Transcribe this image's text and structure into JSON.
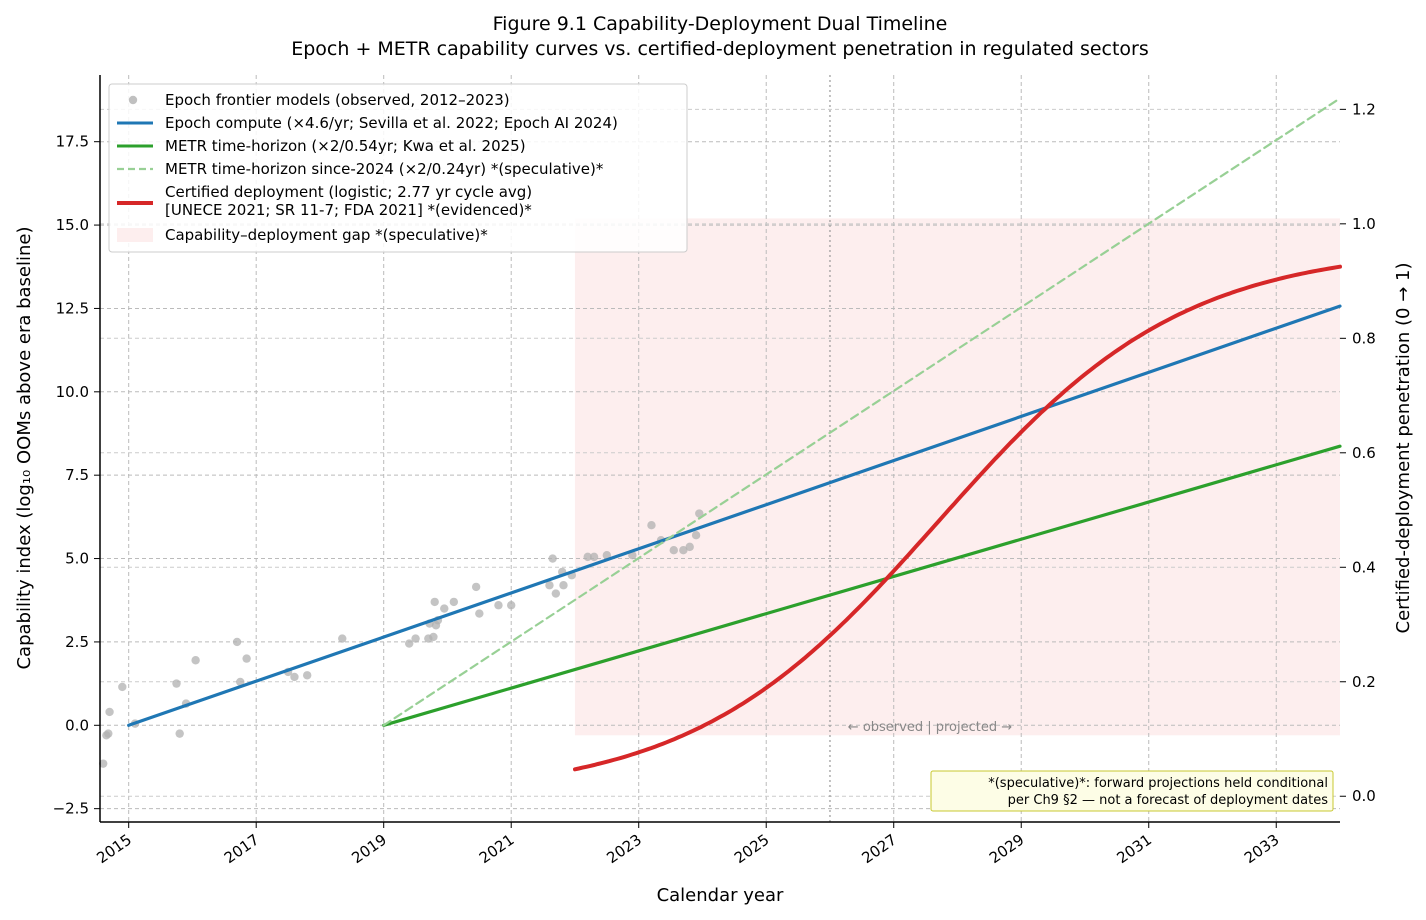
{
  "chart_data": {
    "type": "line",
    "title": "Figure 9.1  Capability-Deployment Dual Timeline",
    "subtitle": "Epoch + METR capability curves vs. certified-deployment penetration in regulated sectors",
    "xlabel": "Calendar year",
    "ylabel_left": "Capability index (log₁₀ OOMs above era baseline)",
    "ylabel_right": "Certified-deployment penetration (0 → 1)",
    "xlim": [
      2014.55,
      2034.0
    ],
    "ylim_left": [
      -2.9,
      19.5
    ],
    "ylim_right": [
      -0.045,
      1.26
    ],
    "x_ticks": [
      2015,
      2017,
      2019,
      2021,
      2023,
      2025,
      2027,
      2029,
      2031,
      2033
    ],
    "x_tick_labels": [
      "2015",
      "2017",
      "2019",
      "2021",
      "2023",
      "2025",
      "2027",
      "2029",
      "2031",
      "2033"
    ],
    "y_left_ticks": [
      -2.5,
      0.0,
      2.5,
      5.0,
      7.5,
      10.0,
      12.5,
      15.0,
      17.5
    ],
    "y_left_tick_labels": [
      "−2.5",
      "0.0",
      "2.5",
      "5.0",
      "7.5",
      "10.0",
      "12.5",
      "15.0",
      "17.5"
    ],
    "y_right_ticks": [
      0.0,
      0.2,
      0.4,
      0.6,
      0.8,
      1.0,
      1.2
    ],
    "y_right_tick_labels": [
      "0.0",
      "0.2",
      "0.4",
      "0.6",
      "0.8",
      "1.0",
      "1.2"
    ],
    "grid": true,
    "legend_position": "upper-left",
    "series": [
      {
        "name": "Epoch frontier models (observed, 2012–2023)",
        "kind": "scatter",
        "axis": "left",
        "color": "#b0b0b0",
        "points": [
          [
            2014.3,
            -1.3
          ],
          [
            2014.6,
            -1.15
          ],
          [
            2014.65,
            -0.3
          ],
          [
            2014.68,
            -0.25
          ],
          [
            2014.7,
            0.4
          ],
          [
            2014.9,
            1.15
          ],
          [
            2015.1,
            0.05
          ],
          [
            2015.75,
            1.25
          ],
          [
            2015.8,
            -0.25
          ],
          [
            2015.9,
            0.65
          ],
          [
            2016.05,
            1.95
          ],
          [
            2016.7,
            2.5
          ],
          [
            2016.75,
            1.3
          ],
          [
            2016.85,
            2.0
          ],
          [
            2017.5,
            1.6
          ],
          [
            2017.6,
            1.45
          ],
          [
            2017.8,
            1.5
          ],
          [
            2018.35,
            2.6
          ],
          [
            2019.4,
            2.45
          ],
          [
            2019.5,
            2.6
          ],
          [
            2019.7,
            2.6
          ],
          [
            2019.72,
            3.05
          ],
          [
            2019.78,
            2.65
          ],
          [
            2019.8,
            3.7
          ],
          [
            2019.82,
            3.0
          ],
          [
            2019.85,
            3.15
          ],
          [
            2019.95,
            3.5
          ],
          [
            2020.1,
            3.7
          ],
          [
            2020.45,
            4.15
          ],
          [
            2020.5,
            3.35
          ],
          [
            2020.8,
            3.6
          ],
          [
            2021.0,
            3.6
          ],
          [
            2021.6,
            4.2
          ],
          [
            2021.65,
            5.0
          ],
          [
            2021.7,
            3.95
          ],
          [
            2021.8,
            4.6
          ],
          [
            2021.82,
            4.2
          ],
          [
            2021.95,
            4.5
          ],
          [
            2022.2,
            5.05
          ],
          [
            2022.3,
            5.05
          ],
          [
            2022.5,
            5.1
          ],
          [
            2022.9,
            5.1
          ],
          [
            2023.2,
            6.0
          ],
          [
            2023.35,
            5.55
          ],
          [
            2023.55,
            5.25
          ],
          [
            2023.7,
            5.25
          ],
          [
            2023.8,
            5.35
          ],
          [
            2023.9,
            5.7
          ],
          [
            2023.95,
            6.35
          ]
        ]
      },
      {
        "name": "Epoch compute (×4.6/yr; Sevilla et al. 2022; Epoch AI 2024)",
        "kind": "line",
        "axis": "left",
        "color": "#1f77b4",
        "points": [
          [
            2015.0,
            0.0
          ],
          [
            2034.0,
            12.57
          ]
        ]
      },
      {
        "name": "METR time-horizon (×2/0.54yr; Kwa et al. 2025)",
        "kind": "line",
        "axis": "left",
        "color": "#2ca02c",
        "points": [
          [
            2019.0,
            0.0
          ],
          [
            2034.0,
            8.37
          ]
        ]
      },
      {
        "name": "METR time-horizon since-2024 (×2/0.24yr) *(speculative)*",
        "kind": "line",
        "axis": "left",
        "color": "#98d095",
        "dashed": true,
        "points": [
          [
            2019.0,
            0.0
          ],
          [
            2034.0,
            18.8
          ]
        ]
      },
      {
        "name": "Certified deployment (logistic; 2.77 yr cycle avg)\n[UNECE 2021; SR 11-7; FDA 2021] *(evidenced)*",
        "kind": "logistic",
        "axis": "right",
        "color": "#d62728",
        "x_start": 2022.0,
        "x_end": 2034.0,
        "L": 0.96,
        "k": 0.52,
        "x0": 2027.7
      }
    ],
    "gap_region": {
      "name": "Capability–deployment gap *(speculative)*",
      "color": "#fdeeee",
      "x_range": [
        2022.0,
        2034.0
      ],
      "y_range_left": [
        -0.3,
        15.2
      ]
    },
    "annotations": {
      "observed_projected": "← observed | projected →",
      "observed_projected_x": 2026.0,
      "note_line1": "*(speculative)*: forward projections held conditional",
      "note_line2": "per Ch9 §2 — not a forecast of deployment dates"
    }
  }
}
